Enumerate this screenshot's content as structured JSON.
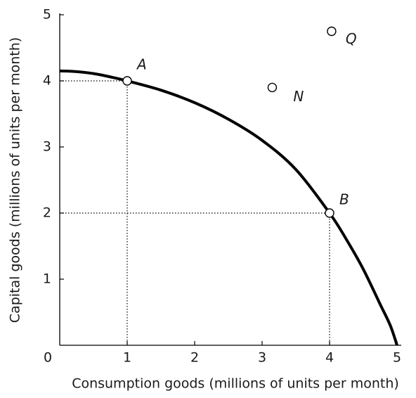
{
  "chart_data": {
    "type": "line",
    "x_label": "Consumption goods (millions of units per month)",
    "y_label": "Capital goods (millions of units per month)",
    "xlim": [
      0,
      5
    ],
    "ylim": [
      0,
      5
    ],
    "xticks": [
      0,
      1,
      2,
      3,
      4,
      5
    ],
    "yticks": [
      1,
      2,
      3,
      4,
      5
    ],
    "curve": {
      "color": "#000000",
      "x": [
        0,
        0.25,
        0.5,
        0.75,
        1,
        1.5,
        2,
        2.5,
        3,
        3.5,
        4,
        4.25,
        4.5,
        4.75,
        4.9,
        5
      ],
      "y": [
        4.15,
        4.14,
        4.11,
        4.06,
        4.0,
        3.86,
        3.67,
        3.42,
        3.1,
        2.66,
        2.0,
        1.6,
        1.15,
        0.62,
        0.3,
        0
      ]
    },
    "points": [
      {
        "label": "A",
        "x": 1,
        "y": 4,
        "guides": true
      },
      {
        "label": "B",
        "x": 4,
        "y": 2,
        "guides": true
      },
      {
        "label": "N",
        "x": 3.15,
        "y": 3.9,
        "guides": false
      },
      {
        "label": "Q",
        "x": 4.03,
        "y": 4.75,
        "guides": false
      }
    ]
  }
}
